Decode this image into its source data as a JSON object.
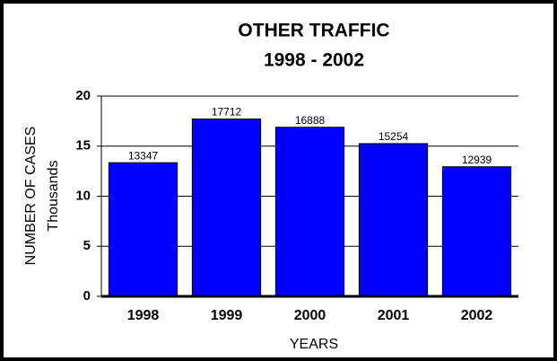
{
  "chart_data": {
    "type": "bar",
    "title": "OTHER TRAFFIC",
    "subtitle": "1998 - 2002",
    "x_label": "YEARS",
    "y_label": [
      "NUMBER OF CASES",
      "Thousands"
    ],
    "categories": [
      "1998",
      "1999",
      "2000",
      "2001",
      "2002"
    ],
    "values": [
      13.347,
      17.712,
      16.888,
      15.254,
      12.939
    ],
    "value_labels": [
      "13347",
      "17712",
      "16888",
      "15254",
      "12939"
    ],
    "color": "#0000ff",
    "ylim": [
      0,
      20
    ],
    "yticks": [
      0,
      5,
      10,
      15,
      20
    ],
    "grid": true
  }
}
